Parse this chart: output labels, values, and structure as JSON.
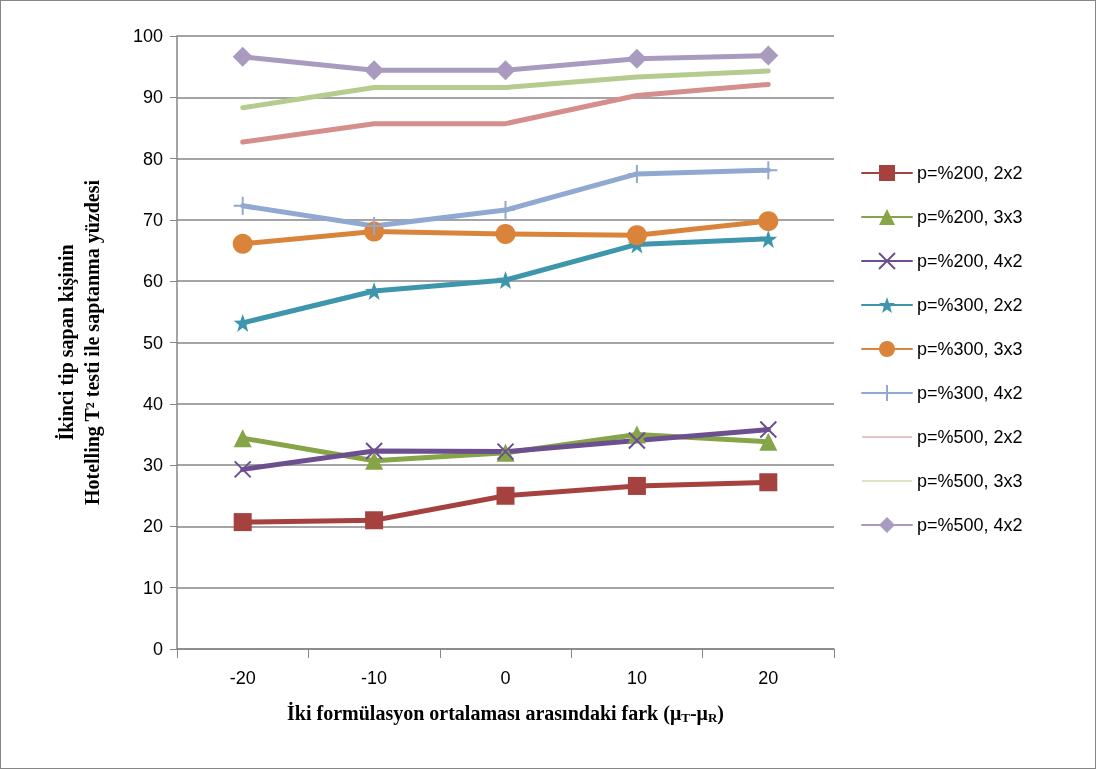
{
  "chart_data": {
    "type": "line",
    "xlabel": "İki formülasyon ortalaması arasındaki fark (μ$_{T}$-μ$_{R}$)",
    "ylabel": "İkinci tip sapan kişinin\nHotelling T² testi ile saptanma yüzdesi",
    "categories": [
      "-20",
      "-10",
      "0",
      "10",
      "20"
    ],
    "ylim": [
      0,
      100
    ],
    "yticks": [
      0,
      10,
      20,
      30,
      40,
      50,
      60,
      70,
      80,
      90,
      100
    ],
    "grid": "y",
    "legend": "right",
    "series": [
      {
        "name": "p=%200, 2x2",
        "color": "#a5413e",
        "marker": "square",
        "values": [
          20.7,
          21.0,
          25.0,
          26.6,
          27.2
        ]
      },
      {
        "name": "p=%200, 3x3",
        "color": "#86a448",
        "marker": "triangle",
        "values": [
          34.4,
          30.7,
          32.0,
          35.0,
          33.8
        ]
      },
      {
        "name": "p=%200, 4x2",
        "color": "#6c4f8f",
        "marker": "cross",
        "values": [
          29.3,
          32.3,
          32.2,
          34.0,
          35.8
        ]
      },
      {
        "name": "p=%300, 2x2",
        "color": "#3d96ab",
        "marker": "star",
        "values": [
          53.2,
          58.4,
          60.2,
          66.0,
          66.9
        ]
      },
      {
        "name": "p=%300, 3x3",
        "color": "#da843b",
        "marker": "circle",
        "values": [
          66.1,
          68.1,
          67.7,
          67.5,
          69.8
        ]
      },
      {
        "name": "p=%300, 4x2",
        "color": "#91a8d0",
        "marker": "plus",
        "values": [
          72.3,
          69.0,
          71.6,
          77.5,
          78.1
        ]
      },
      {
        "name": "p=%500, 2x2",
        "color": "#d48e8c",
        "marker": "none",
        "values": [
          82.7,
          85.7,
          85.7,
          90.3,
          92.1
        ]
      },
      {
        "name": "p=%500, 3x3",
        "color": "#b5cc8e",
        "marker": "none",
        "values": [
          88.3,
          91.6,
          91.6,
          93.3,
          94.3
        ]
      },
      {
        "name": "p=%500, 4x2",
        "color": "#a89bbf",
        "marker": "diamond",
        "values": [
          96.6,
          94.4,
          94.4,
          96.3,
          96.8
        ]
      }
    ]
  }
}
